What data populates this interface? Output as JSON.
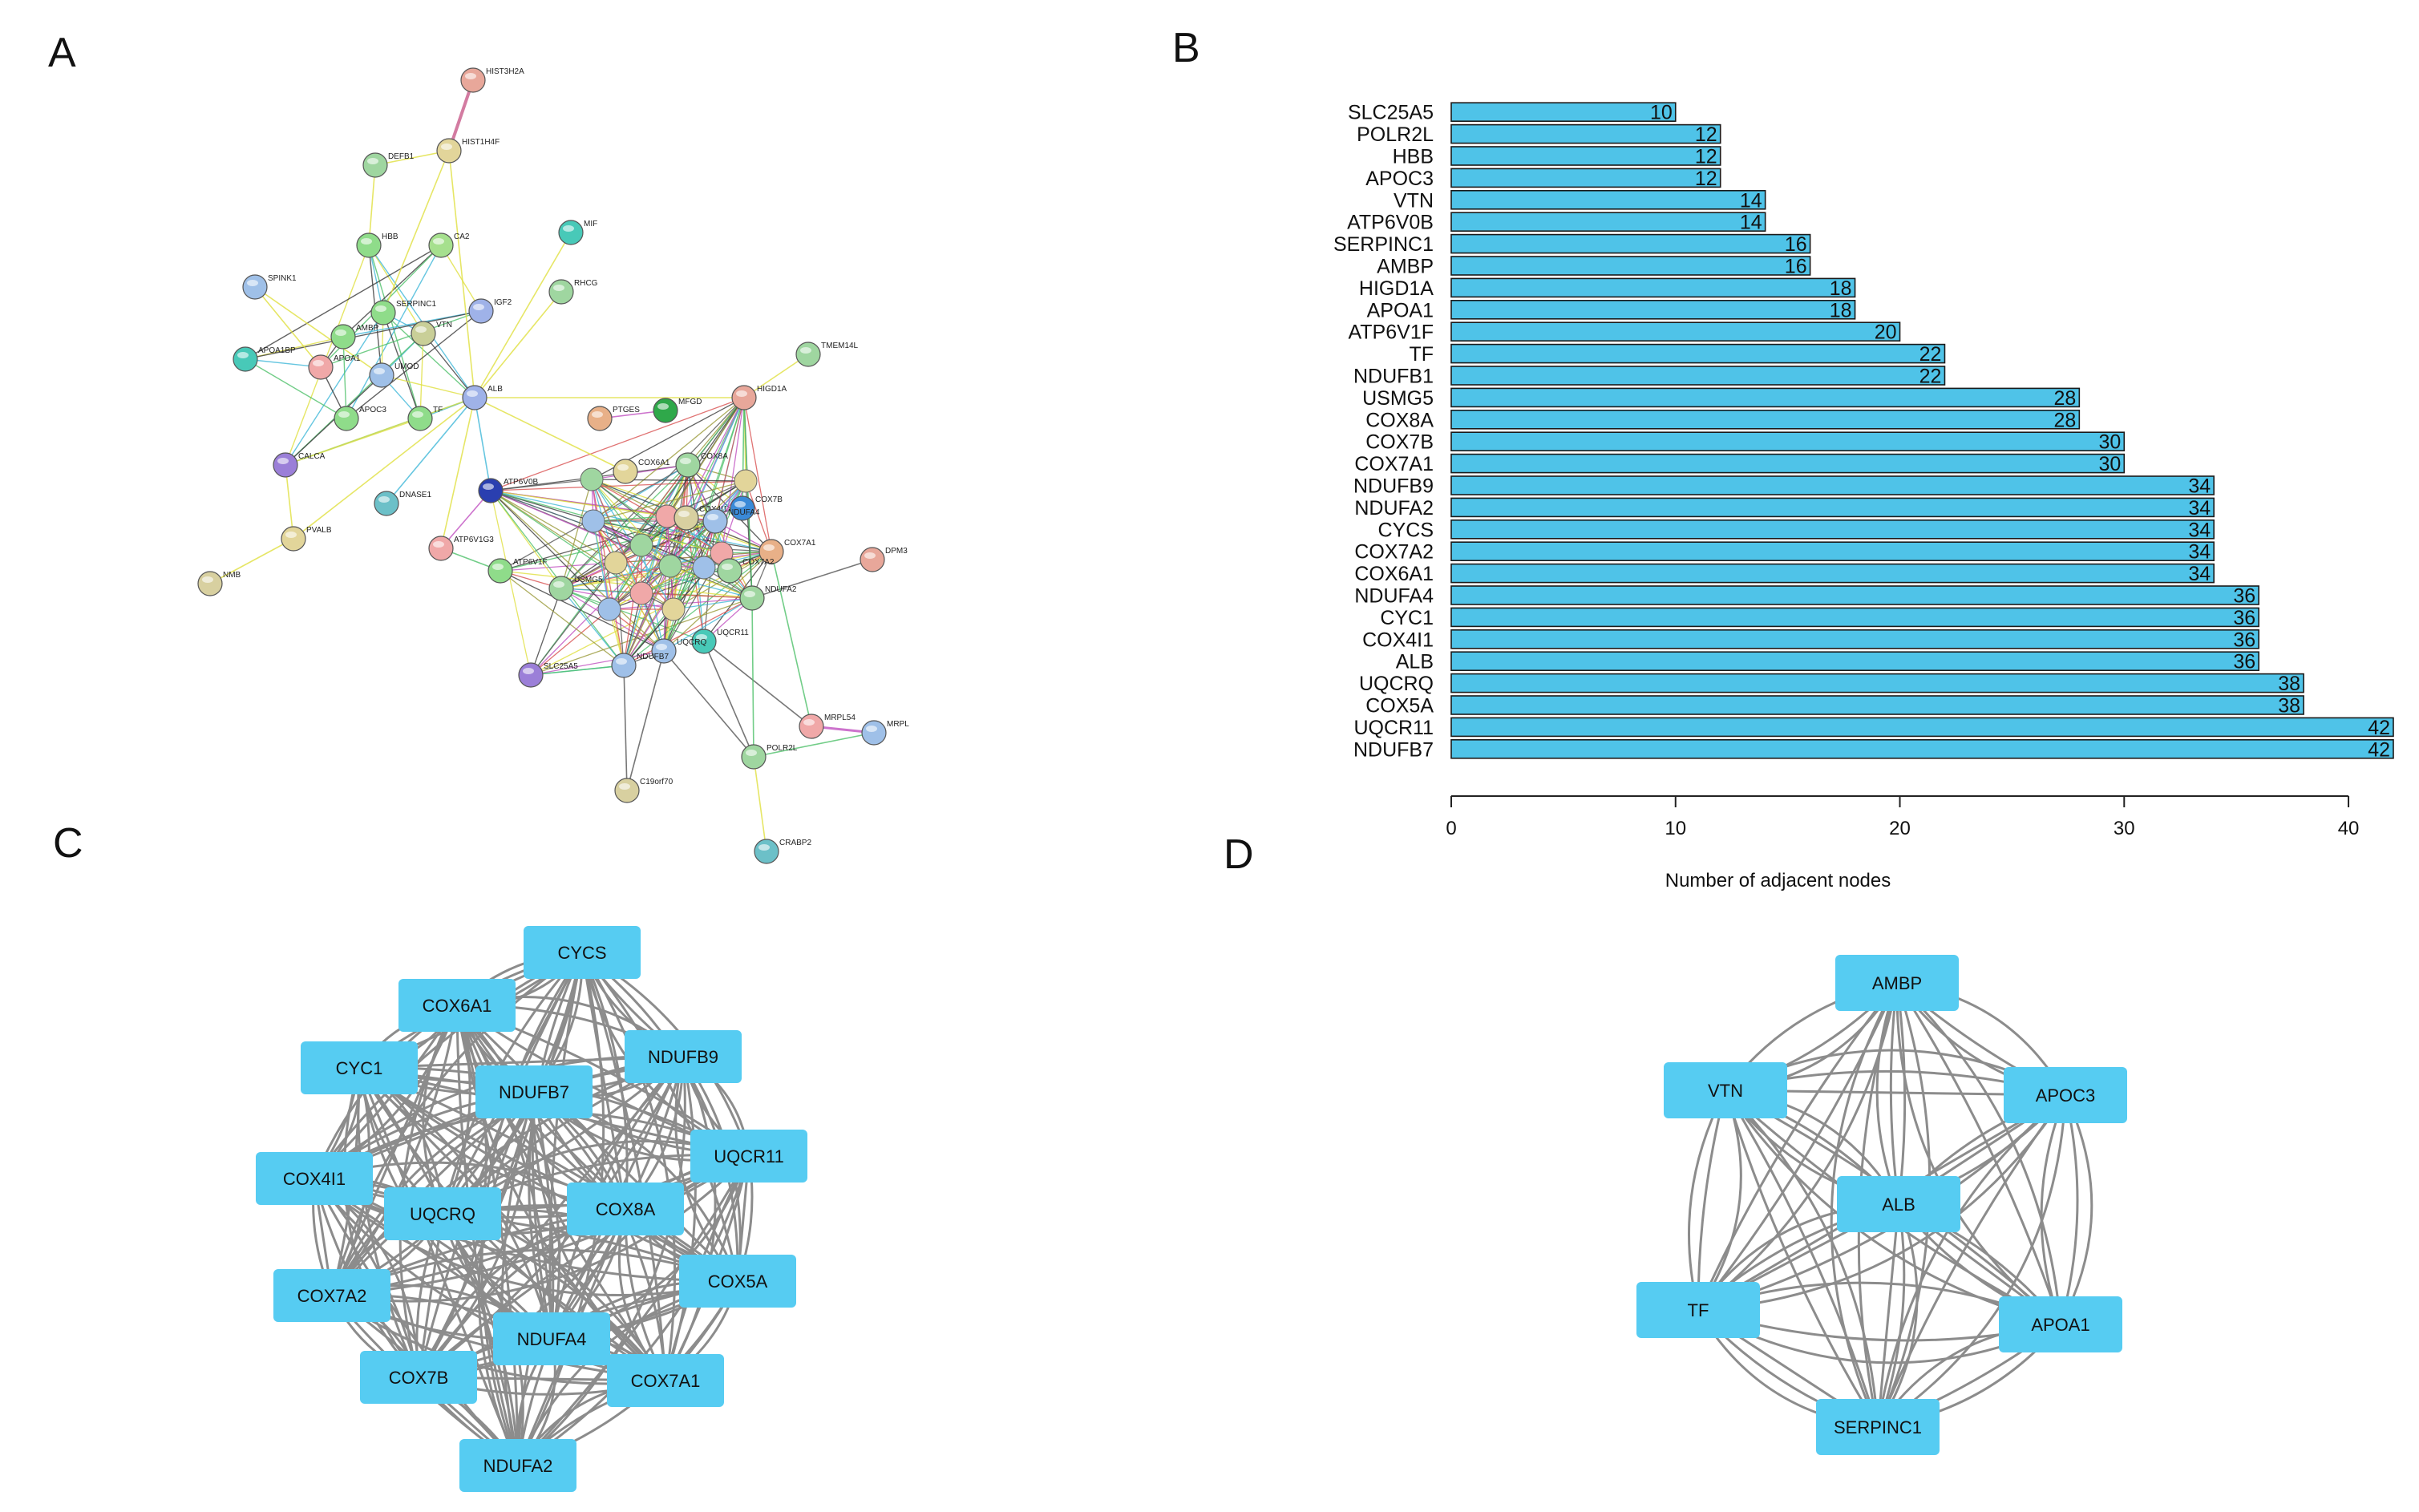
{
  "figure": {
    "panel_labels": {
      "a": "A",
      "b": "B",
      "c": "C",
      "d": "D"
    }
  },
  "chart_data": [
    {
      "panel": "A",
      "type": "network",
      "title": "",
      "node_color": "#9fc0e8",
      "nodes": [
        {
          "id": "HIST3H2A",
          "color": "#e8a79a"
        },
        {
          "id": "HIST1H4F",
          "color": "#e2d59a"
        },
        {
          "id": "DEFB1",
          "color": "#9fd6a0"
        },
        {
          "id": "MIF",
          "color": "#48c9b8"
        },
        {
          "id": "HBB",
          "color": "#8fdc8a"
        },
        {
          "id": "CA2",
          "color": "#a6e08e"
        },
        {
          "id": "SPINK1",
          "color": "#9fc0e8"
        },
        {
          "id": "SERPINC1",
          "color": "#8fdc8a"
        },
        {
          "id": "IGF2",
          "color": "#9fb2e8"
        },
        {
          "id": "RHCG",
          "color": "#9fd6a0"
        },
        {
          "id": "AMBP",
          "color": "#8fdc8a"
        },
        {
          "id": "VTN",
          "color": "#c9cf98"
        },
        {
          "id": "APOA1BP",
          "color": "#48c9b8"
        },
        {
          "id": "APOA1",
          "color": "#f0a8a8"
        },
        {
          "id": "UMOD",
          "color": "#9fc0e8"
        },
        {
          "id": "ALB",
          "color": "#9fb2e8"
        },
        {
          "id": "TMEM14L",
          "color": "#9fd6a0"
        },
        {
          "id": "APOC3",
          "color": "#8fdc8a"
        },
        {
          "id": "TF",
          "color": "#8fdc8a"
        },
        {
          "id": "HIGD1A",
          "color": "#e8a79a"
        },
        {
          "id": "PTGES",
          "color": "#e8b088"
        },
        {
          "id": "MFGD",
          "color": "#2fa84a"
        },
        {
          "id": "CALCA",
          "color": "#9b7fd8"
        },
        {
          "id": "ATP6V0B",
          "color": "#2a3fb0"
        },
        {
          "id": "COX6A1",
          "color": "#e2d59a"
        },
        {
          "id": "COX8A",
          "color": "#9fd6a0"
        },
        {
          "id": "COX4I1",
          "color": "#d8d0a0"
        },
        {
          "id": "DNASE1",
          "color": "#6cc0c8"
        },
        {
          "id": "COX7B",
          "color": "#3a8ad8"
        },
        {
          "id": "PVALB",
          "color": "#e2d59a"
        },
        {
          "id": "ATP6V1G3",
          "color": "#f0a8a8"
        },
        {
          "id": "ATP6V1F",
          "color": "#8fdc8a"
        },
        {
          "id": "NDUFA4",
          "color": "#9fc0e8"
        },
        {
          "id": "COX7A1",
          "color": "#e8b088"
        },
        {
          "id": "COX7A2",
          "color": "#9fd6a0"
        },
        {
          "id": "DPM3",
          "color": "#e8a79a"
        },
        {
          "id": "NMB",
          "color": "#d8d0a0"
        },
        {
          "id": "USMG5",
          "color": "#9fd6a0"
        },
        {
          "id": "NDUFA2",
          "color": "#9fd6a0"
        },
        {
          "id": "UQCR11",
          "color": "#48c9b8"
        },
        {
          "id": "UQCRQ",
          "color": "#9fc0e8"
        },
        {
          "id": "SLC25A5",
          "color": "#9b7fd8"
        },
        {
          "id": "NDUFB7",
          "color": "#9fc0e8"
        },
        {
          "id": "MRPL54",
          "color": "#f0a8a8"
        },
        {
          "id": "MRPL",
          "color": "#9fc0e8"
        },
        {
          "id": "POLR2L",
          "color": "#9fd6a0"
        },
        {
          "id": "C19orf70",
          "color": "#d8d0a0"
        },
        {
          "id": "CRABP2",
          "color": "#6cc0c8"
        }
      ]
    },
    {
      "panel": "B",
      "type": "bar",
      "orientation": "horizontal",
      "xlabel": "Number of adjacent nodes",
      "ylabel": "",
      "xlim": [
        0,
        42
      ],
      "xticks": [
        0,
        10,
        20,
        30,
        40
      ],
      "bar_color": "#4fc3e8",
      "categories": [
        "SLC25A5",
        "POLR2L",
        "HBB",
        "APOC3",
        "VTN",
        "ATP6V0B",
        "SERPINC1",
        "AMBP",
        "HIGD1A",
        "APOA1",
        "ATP6V1F",
        "TF",
        "NDUFB1",
        "USMG5",
        "COX8A",
        "COX7B",
        "COX7A1",
        "NDUFB9",
        "NDUFA2",
        "CYCS",
        "COX7A2",
        "COX6A1",
        "NDUFA4",
        "CYC1",
        "COX4I1",
        "ALB",
        "UQCRQ",
        "COX5A",
        "UQCR11",
        "NDUFB7"
      ],
      "values": [
        10,
        12,
        12,
        12,
        14,
        14,
        16,
        16,
        18,
        18,
        20,
        22,
        22,
        28,
        28,
        30,
        30,
        34,
        34,
        34,
        34,
        34,
        36,
        36,
        36,
        36,
        38,
        38,
        42,
        42
      ]
    },
    {
      "panel": "C",
      "type": "network",
      "node_color": "#56ccf2",
      "edge_color": "#8c8c8c",
      "nodes": [
        "CYCS",
        "COX6A1",
        "NDUFB9",
        "CYC1",
        "NDUFB7",
        "UQCR11",
        "COX4I1",
        "UQCRQ",
        "COX8A",
        "COX5A",
        "COX7A2",
        "NDUFA4",
        "COX7B",
        "COX7A1",
        "NDUFA2"
      ]
    },
    {
      "panel": "D",
      "type": "network",
      "node_color": "#56ccf2",
      "edge_color": "#8c8c8c",
      "nodes": [
        "AMBP",
        "VTN",
        "APOC3",
        "ALB",
        "TF",
        "APOA1",
        "SERPINC1"
      ]
    }
  ]
}
